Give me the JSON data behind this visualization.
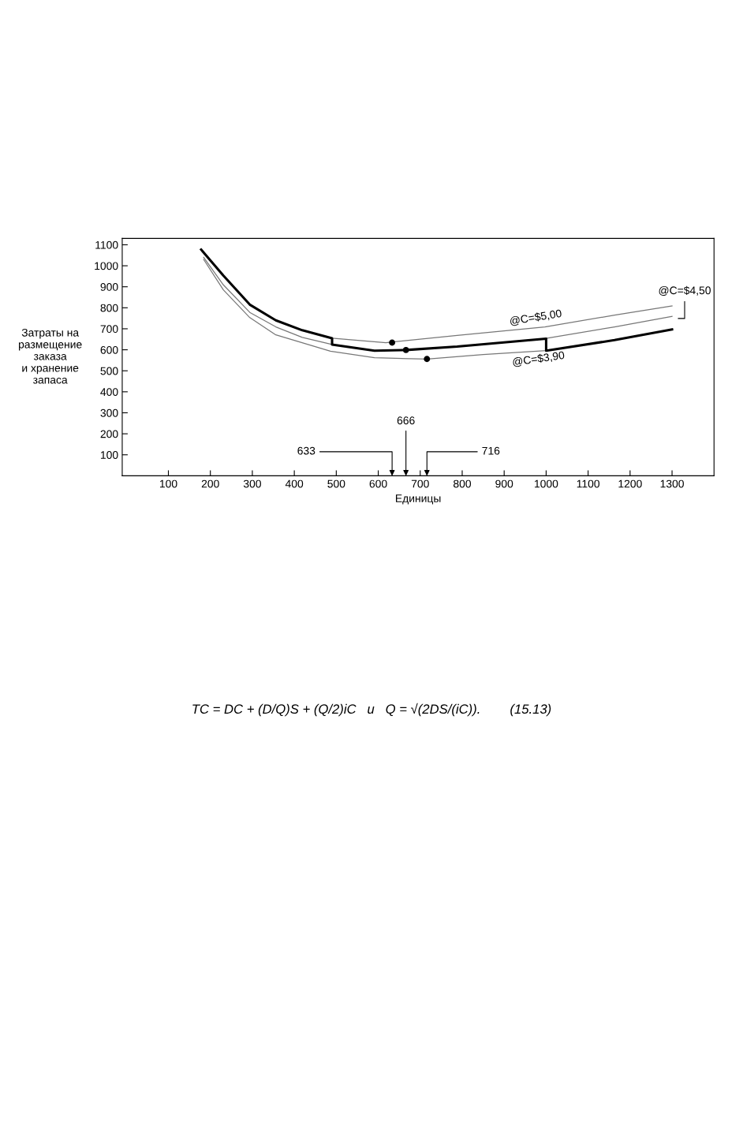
{
  "chart_data": {
    "type": "line",
    "xlabel": "Единицы",
    "ylabel": "Затраты на\nразмещение\nзаказа\nи хранение\nзапаса",
    "xlim": [
      -10,
      1400
    ],
    "ylim": [
      0,
      1130
    ],
    "xticks": [
      100,
      200,
      300,
      400,
      500,
      600,
      700,
      800,
      900,
      1000,
      1100,
      1200,
      1300
    ],
    "yticks": [
      100,
      200,
      300,
      400,
      500,
      600,
      700,
      800,
      900,
      1000,
      1100
    ],
    "grid": false,
    "legend": false,
    "series": [
      {
        "name": "@C=$5,00",
        "color": "#777777",
        "x": [
          178,
          231,
          294,
          356,
          419,
          490,
          618,
          788,
          997,
          1163,
          1300
        ],
        "values": [
          1077,
          953,
          815,
          740,
          693,
          655,
          634,
          668,
          709,
          765,
          809
        ]
      },
      {
        "name": "@C=$4,50",
        "color": "#777777",
        "x": [
          184,
          231,
          294,
          356,
          419,
          490,
          591,
          666,
          788,
          997,
          1163,
          1300
        ],
        "values": [
          1040,
          909,
          778,
          709,
          659,
          625,
          596,
          599,
          615,
          653,
          709,
          759
        ]
      },
      {
        "name": "@C=$3,90",
        "color": "#777777",
        "x": [
          184,
          231,
          294,
          356,
          486,
          591,
          716,
          850,
          1000,
          1163,
          1300
        ],
        "values": [
          1030,
          885,
          753,
          671,
          593,
          562,
          556,
          577,
          596,
          646,
          697
        ]
      },
      {
        "color": "#000000",
        "x": [
          178,
          231,
          294,
          356,
          419,
          490,
          490,
          591,
          666,
          788,
          1000,
          1000,
          1163,
          1300
        ],
        "values": [
          1077,
          953,
          815,
          740,
          693,
          655,
          625,
          596,
          599,
          615,
          653,
          596,
          646,
          697
        ]
      },
      {
        "type": "scatter",
        "color": "#000000",
        "marker": "circle",
        "x": [
          633,
          666,
          716
        ],
        "values": [
          634,
          599,
          556
        ]
      }
    ],
    "annotations": [
      "633",
      "666",
      "716",
      "TC = DC + (D/Q)S + (Q/2)iC   и   Q = √(2DS/(iC)).        (15.13)"
    ]
  }
}
